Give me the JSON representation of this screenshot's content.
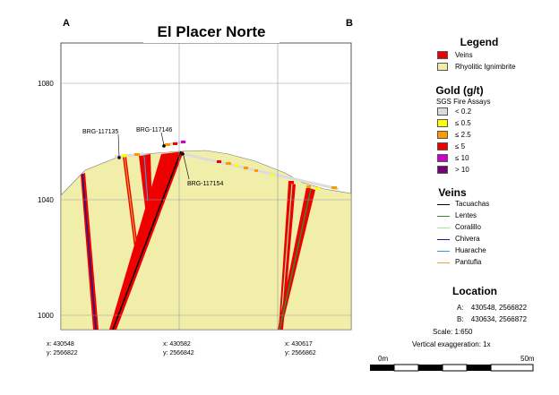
{
  "section": {
    "title": "El Placer Norte",
    "corner_left": "A",
    "corner_right": "B",
    "y_ticks": [
      "1080",
      "1040",
      "1000"
    ],
    "x_ticks": [
      {
        "x": "x: 430548",
        "y": "y: 2566822"
      },
      {
        "x": "x: 430582",
        "y": "y: 2566842"
      },
      {
        "x": "x: 430617",
        "y": "y: 2566862"
      }
    ],
    "drillholes": [
      "BRG-117135",
      "BRG-117146",
      "BRG-117154"
    ],
    "colors": {
      "ignimbrite": "#f1eeaa",
      "vein": "#ee0000",
      "assay_low": "#d8d8d8",
      "assay_05": "#ffff00",
      "assay_25": "#ff9900",
      "assay_5": "#ee0000",
      "assay_10": "#cc00cc",
      "assay_high": "#770077"
    }
  },
  "legend": {
    "title": "Legend",
    "units": [
      {
        "label": "Veins",
        "color": "#ee0000"
      },
      {
        "label": "Rhyolitic Ignimbrite",
        "color": "#f1eeaa"
      }
    ],
    "gold_title": "Gold (g/t)",
    "gold_subtitle": "SGS Fire Assays",
    "gold_classes": [
      {
        "label": "< 0.2",
        "color": "#dcdcdc"
      },
      {
        "label": "≤ 0.5",
        "color": "#ffff00"
      },
      {
        "label": "≤ 2.5",
        "color": "#ff9900"
      },
      {
        "label": "≤ 5",
        "color": "#ee0000"
      },
      {
        "label": "≤ 10",
        "color": "#cc00cc"
      },
      {
        "label": "> 10",
        "color": "#770077"
      }
    ],
    "veins_title": "Veins",
    "veins": [
      {
        "label": "Tacuachas",
        "color": "#000000"
      },
      {
        "label": "Lentes",
        "color": "#2e8b2e"
      },
      {
        "label": "Coralillo",
        "color": "#9ee89e"
      },
      {
        "label": "Chivera",
        "color": "#1a1a8c"
      },
      {
        "label": "Huarache",
        "color": "#4a90d9"
      },
      {
        "label": "Pantufla",
        "color": "#f0a030"
      }
    ]
  },
  "location": {
    "title": "Location",
    "a_label": "A:",
    "a_value": "430548, 2566822",
    "b_label": "B:",
    "b_value": "430634, 2566872",
    "scale": "Scale: 1:650",
    "exaggeration": "Vertical exaggeration: 1x",
    "scalebar_start": "0m",
    "scalebar_end": "50m"
  }
}
